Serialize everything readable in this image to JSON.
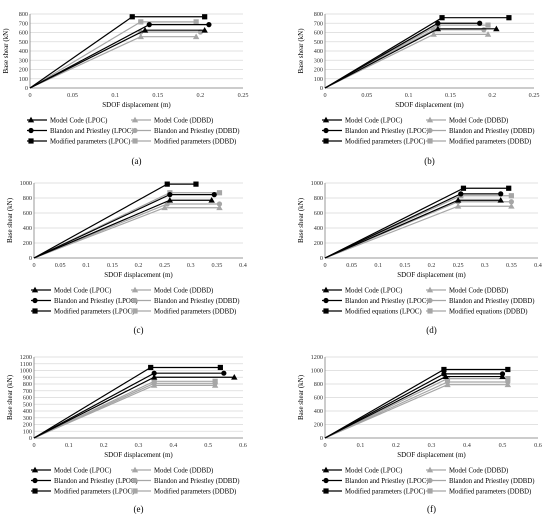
{
  "chart_data": [
    {
      "type": "line",
      "panel_label": "(a)",
      "xlabel": "SDOF displacement (m)",
      "ylabel": "Base shear (kN)",
      "xlim": [
        0,
        0.25
      ],
      "ylim": [
        0,
        800
      ],
      "xticks": [
        "0",
        "0.05",
        "0.1",
        "0.15",
        "0.2",
        "0.25"
      ],
      "yticks": [
        "0",
        "100",
        "200",
        "300",
        "400",
        "500",
        "600",
        "700",
        "800"
      ],
      "grid": true,
      "legend_position": "bottom",
      "series": [
        {
          "name": "Model Code (LPOC)",
          "marker": "triangle",
          "color": "#000000",
          "x": [
            0,
            0.135,
            0.205
          ],
          "y": [
            0,
            625,
            625
          ]
        },
        {
          "name": "Model Code (DDBD)",
          "marker": "triangle",
          "color": "#a6a6a6",
          "x": [
            0,
            0.13,
            0.195
          ],
          "y": [
            0,
            555,
            555
          ]
        },
        {
          "name": "Blandon and Priestley (LPOC)",
          "marker": "circle",
          "color": "#000000",
          "x": [
            0,
            0.14,
            0.21
          ],
          "y": [
            0,
            685,
            685
          ]
        },
        {
          "name": "Blandon and Priestley (DDBD)",
          "marker": "circle",
          "color": "#a6a6a6",
          "x": [
            0,
            0.13,
            0.2
          ],
          "y": [
            0,
            605,
            605
          ]
        },
        {
          "name": "Modified parameters (LPOC)",
          "marker": "square",
          "color": "#000000",
          "x": [
            0,
            0.12,
            0.205
          ],
          "y": [
            0,
            770,
            770
          ]
        },
        {
          "name": "Modified parameters (DDBD)",
          "marker": "square",
          "color": "#a6a6a6",
          "x": [
            0,
            0.13,
            0.195
          ],
          "y": [
            0,
            715,
            715
          ]
        }
      ]
    },
    {
      "type": "line",
      "panel_label": "(b)",
      "xlabel": "SDOF displacement (m)",
      "ylabel": "Base shear (kN)",
      "xlim": [
        0,
        0.25
      ],
      "ylim": [
        0,
        800
      ],
      "xticks": [
        "0",
        "0.05",
        "0.1",
        "0.15",
        "0.2",
        "0.25"
      ],
      "yticks": [
        "0",
        "100",
        "200",
        "300",
        "400",
        "500",
        "600",
        "700",
        "800"
      ],
      "grid": true,
      "legend_position": "bottom",
      "series": [
        {
          "name": "Model Code (LPOC)",
          "marker": "triangle",
          "color": "#000000",
          "x": [
            0,
            0.135,
            0.205
          ],
          "y": [
            0,
            640,
            640
          ]
        },
        {
          "name": "Model Code (DDBD)",
          "marker": "triangle",
          "color": "#a6a6a6",
          "x": [
            0,
            0.13,
            0.195
          ],
          "y": [
            0,
            580,
            580
          ]
        },
        {
          "name": "Blandon and Priestley (LPOC)",
          "marker": "circle",
          "color": "#000000",
          "x": [
            0,
            0.135,
            0.185
          ],
          "y": [
            0,
            700,
            700
          ]
        },
        {
          "name": "Blandon and Priestley (DDBD)",
          "marker": "circle",
          "color": "#a6a6a6",
          "x": [
            0,
            0.13,
            0.19
          ],
          "y": [
            0,
            630,
            630
          ]
        },
        {
          "name": "Modified parameters (LPOC)",
          "marker": "square",
          "color": "#000000",
          "x": [
            0,
            0.14,
            0.22
          ],
          "y": [
            0,
            760,
            760
          ]
        },
        {
          "name": "Modified parameters (DDBD)",
          "marker": "square",
          "color": "#a6a6a6",
          "x": [
            0,
            0.135,
            0.195
          ],
          "y": [
            0,
            680,
            680
          ]
        }
      ]
    },
    {
      "type": "line",
      "panel_label": "(c)",
      "xlabel": "SDOF displacement (m)",
      "ylabel": "Base shear (kN)",
      "xlim": [
        0,
        0.4
      ],
      "ylim": [
        0,
        1000
      ],
      "xticks": [
        "0",
        "0.05",
        "0.1",
        "0.15",
        "0.2",
        "0.25",
        "0.3",
        "0.35",
        "0.4"
      ],
      "yticks": [
        "0",
        "200",
        "400",
        "600",
        "800",
        "1000"
      ],
      "grid": true,
      "legend_position": "bottom",
      "series": [
        {
          "name": "Model Code (LPOC)",
          "marker": "triangle",
          "color": "#000000",
          "x": [
            0,
            0.26,
            0.34
          ],
          "y": [
            0,
            770,
            770
          ]
        },
        {
          "name": "Model Code (DDBD)",
          "marker": "triangle",
          "color": "#a6a6a6",
          "x": [
            0,
            0.25,
            0.355
          ],
          "y": [
            0,
            670,
            670
          ]
        },
        {
          "name": "Blandon and Priestley (LPOC)",
          "marker": "circle",
          "color": "#000000",
          "x": [
            0,
            0.26,
            0.345
          ],
          "y": [
            0,
            845,
            845
          ]
        },
        {
          "name": "Blandon and Priestley (DDBD)",
          "marker": "circle",
          "color": "#a6a6a6",
          "x": [
            0,
            0.255,
            0.355
          ],
          "y": [
            0,
            720,
            720
          ]
        },
        {
          "name": "Modified parameters (LPOC)",
          "marker": "square",
          "color": "#000000",
          "x": [
            0,
            0.255,
            0.31
          ],
          "y": [
            0,
            985,
            985
          ]
        },
        {
          "name": "Modified parameters (DDBD)",
          "marker": "square",
          "color": "#a6a6a6",
          "x": [
            0,
            0.26,
            0.355
          ],
          "y": [
            0,
            870,
            870
          ]
        }
      ]
    },
    {
      "type": "line",
      "panel_label": "(d)",
      "xlabel": "SDOF displacement (m)",
      "ylabel": "Base shear (kN)",
      "xlim": [
        0,
        0.4
      ],
      "ylim": [
        0,
        1000
      ],
      "xticks": [
        "0",
        "0.05",
        "0.1",
        "0.15",
        "0.2",
        "0.25",
        "0.3",
        "0.35",
        "0.4"
      ],
      "yticks": [
        "0",
        "200",
        "400",
        "600",
        "800",
        "1000"
      ],
      "grid": true,
      "legend_position": "bottom",
      "series": [
        {
          "name": "Model Code (LPOC)",
          "marker": "triangle",
          "color": "#000000",
          "x": [
            0,
            0.25,
            0.33
          ],
          "y": [
            0,
            770,
            770
          ]
        },
        {
          "name": "Model Code (DDBD)",
          "marker": "triangle",
          "color": "#a6a6a6",
          "x": [
            0,
            0.25,
            0.35
          ],
          "y": [
            0,
            690,
            690
          ]
        },
        {
          "name": "Blandon and Priestley (LPOC)",
          "marker": "circle",
          "color": "#000000",
          "x": [
            0,
            0.255,
            0.33
          ],
          "y": [
            0,
            855,
            855
          ]
        },
        {
          "name": "Blandon and Priestley (DDBD)",
          "marker": "circle",
          "color": "#a6a6a6",
          "x": [
            0,
            0.25,
            0.35
          ],
          "y": [
            0,
            750,
            750
          ]
        },
        {
          "name": "Modified equations (LPOC)",
          "marker": "square",
          "color": "#000000",
          "x": [
            0,
            0.26,
            0.345
          ],
          "y": [
            0,
            930,
            930
          ]
        },
        {
          "name": "Modified equations (DDBD)",
          "marker": "square",
          "color": "#a6a6a6",
          "x": [
            0,
            0.255,
            0.35
          ],
          "y": [
            0,
            830,
            830
          ]
        }
      ]
    },
    {
      "type": "line",
      "panel_label": "(e)",
      "xlabel": "SDOF displacement (m)",
      "ylabel": "Base shear (kN)",
      "xlim": [
        0,
        0.6
      ],
      "ylim": [
        0,
        1200
      ],
      "xticks": [
        "0",
        "0.1",
        "0.2",
        "0.3",
        "0.4",
        "0.5",
        "0.6"
      ],
      "yticks": [
        "0",
        "100",
        "200",
        "300",
        "400",
        "500",
        "600",
        "700",
        "800",
        "900",
        "1000",
        "1100",
        "1200"
      ],
      "grid": true,
      "legend_position": "bottom",
      "series": [
        {
          "name": "Model Code (LPOC)",
          "marker": "triangle",
          "color": "#000000",
          "x": [
            0,
            0.345,
            0.575
          ],
          "y": [
            0,
            900,
            900
          ]
        },
        {
          "name": "Model Code (DDBD)",
          "marker": "triangle",
          "color": "#a6a6a6",
          "x": [
            0,
            0.345,
            0.52
          ],
          "y": [
            0,
            780,
            780
          ]
        },
        {
          "name": "Blandon and Priestley (LPOC)",
          "marker": "circle",
          "color": "#000000",
          "x": [
            0,
            0.345,
            0.545
          ],
          "y": [
            0,
            960,
            960
          ]
        },
        {
          "name": "Blandon and Priestley (DDBD)",
          "marker": "circle",
          "color": "#a6a6a6",
          "x": [
            0,
            0.345,
            0.52
          ],
          "y": [
            0,
            810,
            810
          ]
        },
        {
          "name": "Modified parameters (LPOC)",
          "marker": "square",
          "color": "#000000",
          "x": [
            0,
            0.335,
            0.535
          ],
          "y": [
            0,
            1045,
            1045
          ]
        },
        {
          "name": "Modified parameters (DDBD)",
          "marker": "square",
          "color": "#a6a6a6",
          "x": [
            0,
            0.345,
            0.52
          ],
          "y": [
            0,
            840,
            840
          ]
        }
      ]
    },
    {
      "type": "line",
      "panel_label": "(f)",
      "xlabel": "SDOF displacement (m)",
      "ylabel": "Base shear (kN)",
      "xlim": [
        0,
        0.6
      ],
      "ylim": [
        0,
        1200
      ],
      "xticks": [
        "0",
        "0.1",
        "0.2",
        "0.3",
        "0.4",
        "0.5",
        "0.6"
      ],
      "yticks": [
        "0",
        "200",
        "400",
        "600",
        "800",
        "1000",
        "1200"
      ],
      "grid": true,
      "legend_position": "bottom",
      "series": [
        {
          "name": "Model Code (LPOC)",
          "marker": "triangle",
          "color": "#000000",
          "x": [
            0,
            0.34,
            0.5
          ],
          "y": [
            0,
            910,
            910
          ]
        },
        {
          "name": "Model Code (DDBD)",
          "marker": "triangle",
          "color": "#a6a6a6",
          "x": [
            0,
            0.345,
            0.515
          ],
          "y": [
            0,
            790,
            790
          ]
        },
        {
          "name": "Blandon and Priestley (LPOC)",
          "marker": "circle",
          "color": "#000000",
          "x": [
            0,
            0.335,
            0.5
          ],
          "y": [
            0,
            950,
            950
          ]
        },
        {
          "name": "Blandon and Priestley (DDBD)",
          "marker": "circle",
          "color": "#a6a6a6",
          "x": [
            0,
            0.345,
            0.515
          ],
          "y": [
            0,
            830,
            830
          ]
        },
        {
          "name": "Modified parameters (LPOC)",
          "marker": "square",
          "color": "#000000",
          "x": [
            0,
            0.335,
            0.515
          ],
          "y": [
            0,
            1015,
            1015
          ]
        },
        {
          "name": "Modified parameters (DDBD)",
          "marker": "square",
          "color": "#a6a6a6",
          "x": [
            0,
            0.345,
            0.515
          ],
          "y": [
            0,
            880,
            880
          ]
        }
      ]
    }
  ]
}
